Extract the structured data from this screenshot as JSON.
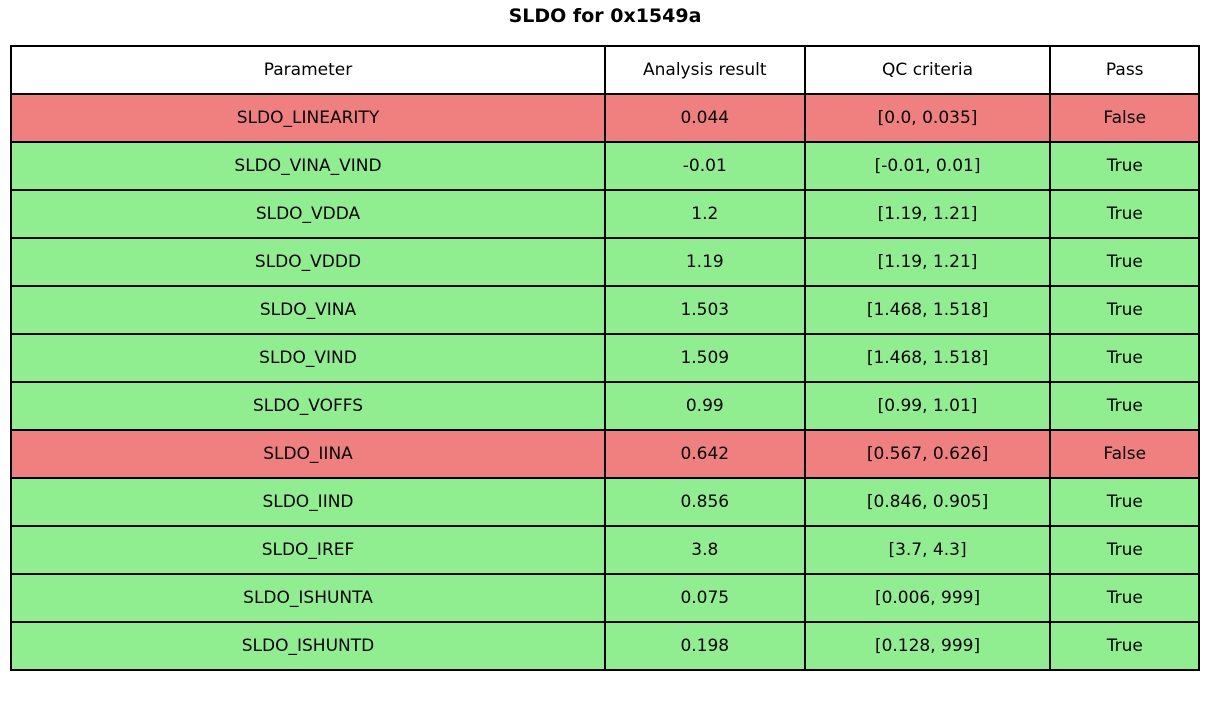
{
  "title": "SLDO for 0x1549a",
  "colors": {
    "pass_row": "#90ee90",
    "fail_row": "#f08080",
    "border": "#000000",
    "header_bg": "#ffffff",
    "text": "#000000"
  },
  "table": {
    "columns": [
      "Parameter",
      "Analysis result",
      "QC criteria",
      "Pass"
    ],
    "rows": [
      {
        "parameter": "SLDO_LINEARITY",
        "result": "0.044",
        "criteria": "[0.0, 0.035]",
        "pass": "False",
        "status": "fail"
      },
      {
        "parameter": "SLDO_VINA_VIND",
        "result": "-0.01",
        "criteria": "[-0.01, 0.01]",
        "pass": "True",
        "status": "pass"
      },
      {
        "parameter": "SLDO_VDDA",
        "result": "1.2",
        "criteria": "[1.19, 1.21]",
        "pass": "True",
        "status": "pass"
      },
      {
        "parameter": "SLDO_VDDD",
        "result": "1.19",
        "criteria": "[1.19, 1.21]",
        "pass": "True",
        "status": "pass"
      },
      {
        "parameter": "SLDO_VINA",
        "result": "1.503",
        "criteria": "[1.468, 1.518]",
        "pass": "True",
        "status": "pass"
      },
      {
        "parameter": "SLDO_VIND",
        "result": "1.509",
        "criteria": "[1.468, 1.518]",
        "pass": "True",
        "status": "pass"
      },
      {
        "parameter": "SLDO_VOFFS",
        "result": "0.99",
        "criteria": "[0.99, 1.01]",
        "pass": "True",
        "status": "pass"
      },
      {
        "parameter": "SLDO_IINA",
        "result": "0.642",
        "criteria": "[0.567, 0.626]",
        "pass": "False",
        "status": "fail"
      },
      {
        "parameter": "SLDO_IIND",
        "result": "0.856",
        "criteria": "[0.846, 0.905]",
        "pass": "True",
        "status": "pass"
      },
      {
        "parameter": "SLDO_IREF",
        "result": "3.8",
        "criteria": "[3.7, 4.3]",
        "pass": "True",
        "status": "pass"
      },
      {
        "parameter": "SLDO_ISHUNTA",
        "result": "0.075",
        "criteria": "[0.006, 999]",
        "pass": "True",
        "status": "pass"
      },
      {
        "parameter": "SLDO_ISHUNTD",
        "result": "0.198",
        "criteria": "[0.128, 999]",
        "pass": "True",
        "status": "pass"
      }
    ]
  },
  "chart_data": {
    "type": "table",
    "title": "SLDO for 0x1549a",
    "columns": [
      "Parameter",
      "Analysis result",
      "QC criteria",
      "Pass"
    ],
    "rows": [
      [
        "SLDO_LINEARITY",
        "0.044",
        "[0.0, 0.035]",
        "False"
      ],
      [
        "SLDO_VINA_VIND",
        "-0.01",
        "[-0.01, 0.01]",
        "True"
      ],
      [
        "SLDO_VDDA",
        "1.2",
        "[1.19, 1.21]",
        "True"
      ],
      [
        "SLDO_VDDD",
        "1.19",
        "[1.19, 1.21]",
        "True"
      ],
      [
        "SLDO_VINA",
        "1.503",
        "[1.468, 1.518]",
        "True"
      ],
      [
        "SLDO_VIND",
        "1.509",
        "[1.468, 1.518]",
        "True"
      ],
      [
        "SLDO_VOFFS",
        "0.99",
        "[0.99, 1.01]",
        "True"
      ],
      [
        "SLDO_IINA",
        "0.642",
        "[0.567, 0.626]",
        "False"
      ],
      [
        "SLDO_IIND",
        "0.856",
        "[0.846, 0.905]",
        "True"
      ],
      [
        "SLDO_IREF",
        "3.8",
        "[3.7, 4.3]",
        "True"
      ],
      [
        "SLDO_ISHUNTA",
        "0.075",
        "[0.006, 999]",
        "True"
      ],
      [
        "SLDO_ISHUNTD",
        "0.198",
        "[0.128, 999]",
        "True"
      ]
    ],
    "row_status_colors": {
      "pass": "#90ee90",
      "fail": "#f08080"
    },
    "layout": {
      "grid": true,
      "header_background": "#ffffff"
    }
  }
}
